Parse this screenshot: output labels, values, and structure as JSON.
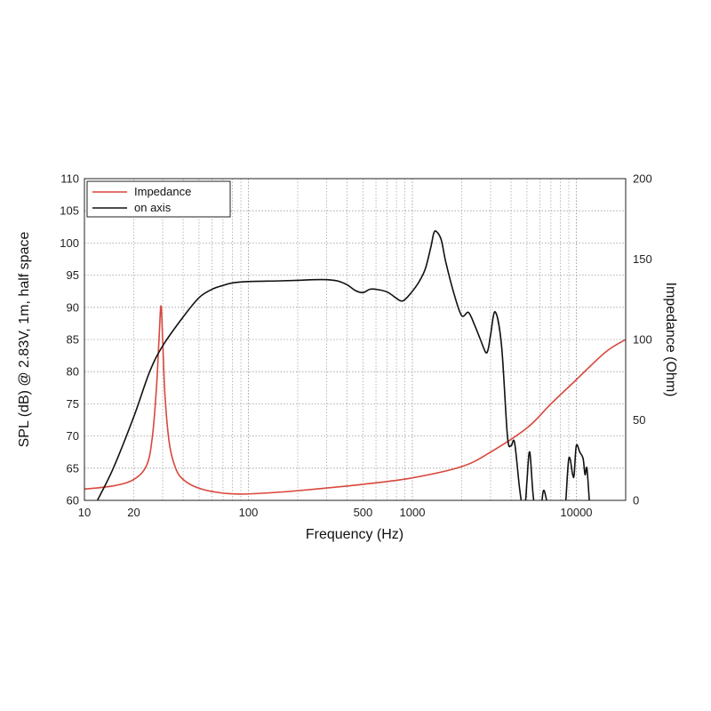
{
  "chart_data": {
    "type": "line",
    "xlabel": "Frequency (Hz)",
    "ylabel": "SPL (dB) @ 2.83V, 1m, half space",
    "y2label": "Impedance (Ohm)",
    "x_scale": "log",
    "xlim": [
      10,
      20000
    ],
    "ylim": [
      60,
      110
    ],
    "y2lim": [
      0,
      200
    ],
    "grid": true,
    "legend_position": "top-left",
    "x_ticks": [
      {
        "value": 10,
        "label": "10"
      },
      {
        "value": 20,
        "label": "20"
      },
      {
        "value": 100,
        "label": "100"
      },
      {
        "value": 500,
        "label": "500"
      },
      {
        "value": 1000,
        "label": "1000"
      },
      {
        "value": 10000,
        "label": "10000"
      }
    ],
    "y_ticks": [
      60,
      65,
      70,
      75,
      80,
      85,
      90,
      95,
      100,
      105,
      110
    ],
    "y2_ticks": [
      0,
      50,
      100,
      150,
      200
    ],
    "colors": {
      "impedance": "#d9473c",
      "on_axis": "#111111",
      "grid": "#9a9a9a"
    },
    "series": [
      {
        "name": "Impedance",
        "axis": "right",
        "color": "#d9473c",
        "x": [
          10,
          15,
          20,
          24,
          26,
          27.5,
          28.5,
          29.3,
          30,
          31,
          33,
          36,
          40,
          50,
          70,
          100,
          200,
          500,
          1000,
          2000,
          3000,
          5000,
          7000,
          10000,
          15000,
          20000
        ],
        "y": [
          7,
          9,
          13,
          22,
          40,
          70,
          100,
          121,
          100,
          65,
          35,
          20,
          13,
          7.5,
          4.5,
          4,
          6,
          10,
          14,
          21,
          30,
          45,
          60,
          75,
          92,
          100
        ]
      },
      {
        "name": "on axis",
        "axis": "left",
        "color": "#111111",
        "x": [
          12,
          15,
          20,
          25,
          30,
          40,
          50,
          60,
          70,
          80,
          100,
          150,
          200,
          250,
          300,
          350,
          400,
          450,
          500,
          550,
          600,
          700,
          800,
          850,
          900,
          1000,
          1100,
          1200,
          1300,
          1350,
          1400,
          1500,
          1600,
          1800,
          2000,
          2200,
          2400,
          2600,
          2800,
          2900,
          3000,
          3200,
          3500,
          3800,
          4000,
          4200,
          4500,
          4700,
          4900,
          5000,
          5200,
          5500,
          6000,
          6300,
          6600,
          7000,
          7500,
          8000,
          8500,
          9000,
          9500,
          9700,
          10000,
          10500,
          11000,
          11300,
          11600,
          12000
        ],
        "y": [
          60,
          65,
          73,
          80,
          84,
          88.5,
          91.5,
          92.8,
          93.4,
          93.8,
          94,
          94.1,
          94.2,
          94.3,
          94.3,
          94.1,
          93.5,
          92.6,
          92.3,
          92.8,
          92.8,
          92.4,
          91.4,
          91,
          91.2,
          92.5,
          94,
          96,
          99.5,
          101.5,
          101.8,
          100.5,
          97,
          92,
          88.7,
          89.2,
          87.2,
          85,
          83,
          83.5,
          85.7,
          89.3,
          84,
          70,
          68.5,
          69,
          62,
          59,
          60,
          63,
          67.5,
          60,
          58,
          61.5,
          60,
          58,
          58,
          58,
          58,
          66.5,
          64,
          64,
          68.5,
          67.5,
          66.5,
          64,
          65,
          60
        ]
      }
    ]
  },
  "legend": {
    "impedance_label": "Impedance",
    "on_axis_label": "on axis"
  },
  "axes": {
    "x_label": "Frequency (Hz)",
    "y_left_label": "SPL (dB) @ 2.83V, 1m, half space",
    "y_right_label": "Impedance (Ohm)"
  }
}
